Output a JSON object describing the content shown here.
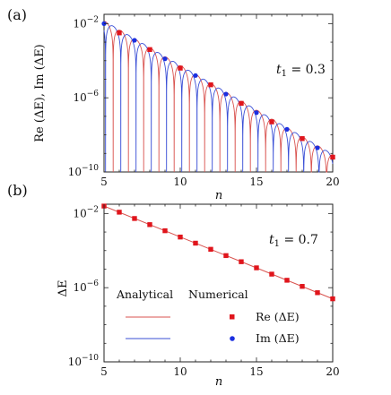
{
  "chart_data": [
    {
      "type": "line",
      "panel_label": "(a)",
      "annotation": "t₁ = 0.3",
      "annotation_main": "t",
      "annotation_sub": "1",
      "annotation_rest": " = 0.3",
      "xlabel": "n",
      "ylabel": "Re (ΔE), Im (ΔE)",
      "xlim": [
        5,
        20
      ],
      "ylim_log10": [
        -10,
        -1.5
      ],
      "yscale": "log",
      "xticks": [
        "5",
        "10",
        "15",
        "20"
      ],
      "yticks": [
        {
          "base": "10",
          "exp": "−2"
        },
        {
          "base": "10",
          "exp": "−6"
        },
        {
          "base": "10",
          "exp": "−10"
        }
      ],
      "grid": false,
      "series": [
        {
          "kind": "analytical",
          "component": "Re",
          "color": "#d9534f",
          "envelope_log10_at_5": -1.85,
          "envelope_log10_slope_per_n": -0.48,
          "zeros_n": [
            5.6,
            6.6,
            7.6,
            8.6,
            9.6,
            10.6,
            11.6,
            12.6,
            13.6,
            14.6,
            15.6,
            16.6,
            17.6,
            18.6,
            19.6
          ]
        },
        {
          "kind": "analytical",
          "component": "Im",
          "color": "#3a4fd6",
          "envelope_log10_at_5": -1.85,
          "envelope_log10_slope_per_n": -0.48,
          "zeros_n": [
            6.1,
            7.1,
            8.1,
            9.1,
            10.1,
            11.1,
            12.1,
            13.1,
            14.1,
            15.1,
            16.1,
            17.1,
            18.1,
            19.1
          ]
        },
        {
          "kind": "numerical",
          "component": "Re",
          "color": "#e0151c",
          "marker": "square",
          "x": [
            6,
            8,
            10,
            12,
            14,
            16,
            18,
            20
          ],
          "y_log10": [
            -2.5,
            -3.4,
            -4.4,
            -5.3,
            -6.3,
            -7.3,
            -8.2,
            -9.2
          ]
        },
        {
          "kind": "numerical",
          "component": "Im",
          "color": "#1b2fe0",
          "marker": "circle",
          "x": [
            5,
            7,
            9,
            11,
            13,
            15,
            17,
            19
          ],
          "y_log10": [
            -2.0,
            -2.9,
            -3.9,
            -4.8,
            -5.8,
            -6.8,
            -7.7,
            -8.7
          ]
        }
      ]
    },
    {
      "type": "line",
      "panel_label": "(b)",
      "annotation_main": "t",
      "annotation_sub": "1",
      "annotation_rest": " = 0.7",
      "xlabel": "n",
      "ylabel": "ΔE",
      "xlim": [
        5,
        20
      ],
      "ylim_log10": [
        -10,
        -1.5
      ],
      "yscale": "log",
      "xticks": [
        "5",
        "10",
        "15",
        "20"
      ],
      "yticks": [
        {
          "base": "10",
          "exp": "−2"
        },
        {
          "base": "10",
          "exp": "−6"
        },
        {
          "base": "10",
          "exp": "−10"
        }
      ],
      "grid": false,
      "series": [
        {
          "kind": "analytical",
          "component": "Re",
          "color": "#d9534f",
          "x": [
            5,
            20
          ],
          "y_log10": [
            -1.6,
            -6.6
          ]
        },
        {
          "kind": "numerical",
          "component": "Re",
          "color": "#e0151c",
          "marker": "square",
          "x": [
            5,
            6,
            7,
            8,
            9,
            10,
            11,
            12,
            13,
            14,
            15,
            16,
            17,
            18,
            19,
            20
          ],
          "y_log10": [
            -1.6,
            -1.93,
            -2.27,
            -2.6,
            -2.93,
            -3.27,
            -3.6,
            -3.93,
            -4.27,
            -4.6,
            -4.93,
            -5.27,
            -5.6,
            -5.93,
            -6.27,
            -6.6
          ]
        }
      ],
      "legend": {
        "placement": "bottom-left",
        "header_analytical": "Analytical",
        "header_numerical": "Numerical",
        "entries": [
          {
            "label": "Re (ΔE)",
            "line_color": "#d9534f",
            "marker_color": "#e0151c",
            "marker": "square"
          },
          {
            "label": "Im (ΔE)",
            "line_color": "#3a4fd6",
            "marker_color": "#1b2fe0",
            "marker": "circle"
          }
        ]
      }
    }
  ]
}
